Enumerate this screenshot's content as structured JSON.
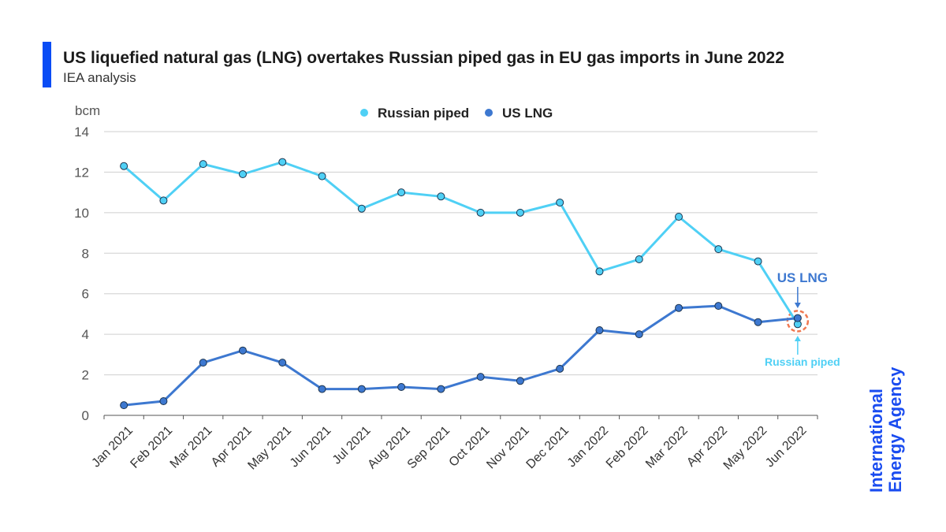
{
  "header": {
    "title": "US liquefied natural gas (LNG) overtakes Russian piped gas in EU gas imports in June 2022",
    "subtitle": "IEA analysis"
  },
  "logo": {
    "line1": "International",
    "line2": "Energy Agency",
    "color": "#1a4cf0"
  },
  "chart_data": {
    "type": "line",
    "ylabel": "bcm",
    "ylim": [
      0,
      14
    ],
    "yticks": [
      0,
      2,
      4,
      6,
      8,
      10,
      12,
      14
    ],
    "grid": true,
    "legend_placement": "top-center",
    "categories": [
      "Jan 2021",
      "Feb 2021",
      "Mar 2021",
      "Apr 2021",
      "May 2021",
      "Jun 2021",
      "Jul 2021",
      "Aug 2021",
      "Sep 2021",
      "Oct 2021",
      "Nov 2021",
      "Dec 2021",
      "Jan 2022",
      "Feb 2022",
      "Mar 2022",
      "Apr 2022",
      "May 2022",
      "Jun 2022"
    ],
    "series": [
      {
        "name": "Russian piped",
        "color": "#4fd0f5",
        "values": [
          12.3,
          10.6,
          12.4,
          11.9,
          12.5,
          11.8,
          10.2,
          11.0,
          10.8,
          10.0,
          10.0,
          10.5,
          7.1,
          7.7,
          9.8,
          8.2,
          7.6,
          4.5
        ]
      },
      {
        "name": "US LNG",
        "color": "#3d78d0",
        "values": [
          0.5,
          0.7,
          2.6,
          3.2,
          2.6,
          1.3,
          1.3,
          1.4,
          1.3,
          1.9,
          1.7,
          2.3,
          4.2,
          4.0,
          5.3,
          5.4,
          4.6,
          4.8
        ]
      }
    ],
    "annotations": [
      {
        "text": "US LNG",
        "color": "#3d78d0"
      },
      {
        "text": "Russian piped",
        "color": "#4fd0f5"
      }
    ],
    "highlight_color": "#f07850"
  }
}
